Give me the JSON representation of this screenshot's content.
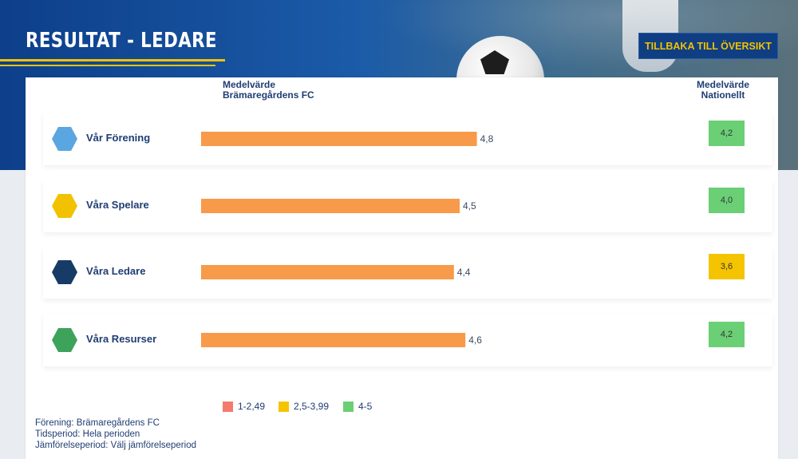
{
  "header": {
    "title": "RESULTAT - LEDARE",
    "back_button": "TILLBAKA TILL ÖVERSIKT"
  },
  "columns": {
    "club_avg": [
      "Medelvärde",
      "Brämaregårdens FC"
    ],
    "national_avg": [
      "Medelvärde",
      "Nationellt"
    ]
  },
  "colors": {
    "bar": "#f79a4a",
    "low": "#f47a6e",
    "mid": "#f5c400",
    "high": "#6bcf75"
  },
  "chart_data": {
    "type": "bar",
    "orientation": "horizontal",
    "categories": [
      "Vår Förening",
      "Våra Spelare",
      "Våra Ledare",
      "Våra Resurser"
    ],
    "values": [
      4.8,
      4.5,
      4.4,
      4.6
    ],
    "value_labels": [
      "4,8",
      "4,5",
      "4,4",
      "4,6"
    ],
    "national_values": [
      4.2,
      4.0,
      3.6,
      4.2
    ],
    "national_labels": [
      "4,2",
      "4,0",
      "3,6",
      "4,2"
    ],
    "national_colors": [
      "high",
      "high",
      "mid",
      "high"
    ],
    "xlim": [
      0,
      5
    ],
    "icons": [
      {
        "name": "club-icon",
        "color": "#5aa6e0"
      },
      {
        "name": "players-icon",
        "color": "#f2c200"
      },
      {
        "name": "leaders-icon",
        "color": "#163b66"
      },
      {
        "name": "resources-icon",
        "color": "#3ea35a"
      }
    ]
  },
  "legend": [
    {
      "label": "1-2,49",
      "color": "low"
    },
    {
      "label": "2,5-3,99",
      "color": "mid"
    },
    {
      "label": "4-5",
      "color": "high"
    }
  ],
  "footer": {
    "club": "Förening: Brämaregårdens FC",
    "period": "Tidsperiod: Hela perioden",
    "comparison": "Jämförelseperiod: Välj jämförelseperiod"
  }
}
